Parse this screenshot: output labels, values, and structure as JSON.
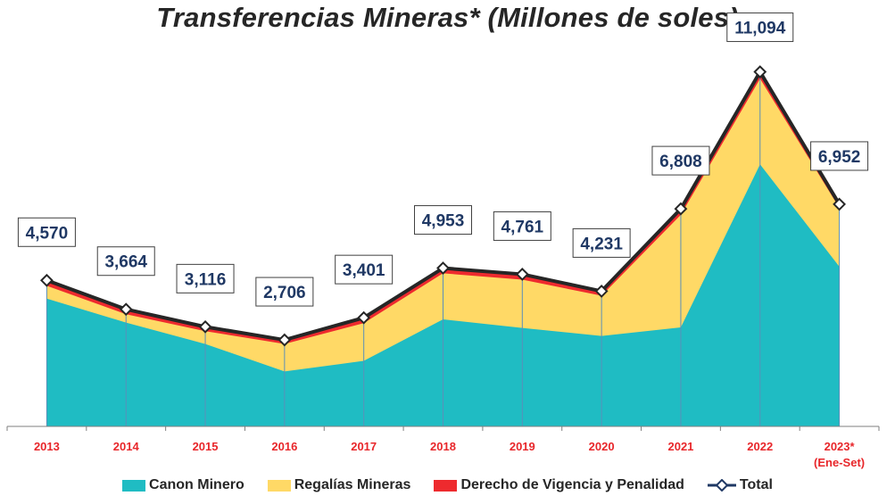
{
  "chart_data": {
    "type": "area",
    "title": "Transferencias Mineras* (Millones de soles)",
    "categories": [
      "2013",
      "2014",
      "2015",
      "2016",
      "2017",
      "2018",
      "2019",
      "2020",
      "2021",
      "2022",
      "2023*"
    ],
    "category_sublabels": [
      "",
      "",
      "",
      "",
      "",
      "",
      "",
      "",
      "",
      "",
      "(Ene-Set)"
    ],
    "stacked": true,
    "series": [
      {
        "name": "Canon Minero",
        "color": "#1fbcc3",
        "values": [
          4000,
          3250,
          2580,
          1720,
          2050,
          3350,
          3080,
          2830,
          3100,
          8200,
          5000
        ]
      },
      {
        "name": "Regalías Mineras",
        "color": "#ffd966",
        "values": [
          400,
          260,
          400,
          860,
          1180,
          1440,
          1510,
          1260,
          3520,
          2680,
          1840
        ]
      },
      {
        "name": "Derecho de Vigencia y Penalidad",
        "color": "#ee2a2e",
        "values": [
          170,
          154,
          136,
          126,
          171,
          163,
          171,
          141,
          188,
          214,
          112
        ]
      }
    ],
    "total": {
      "name": "Total",
      "values": [
        4570,
        3664,
        3116,
        2706,
        3401,
        4953,
        4761,
        4231,
        6808,
        11094,
        6952
      ],
      "labels": [
        "4,570",
        "3,664",
        "3,116",
        "2,706",
        "3,401",
        "4,953",
        "4,761",
        "4,231",
        "6,808",
        "11,094",
        "6,952"
      ]
    },
    "ylim": [
      0,
      11500
    ],
    "grid": false,
    "legend": "bottom"
  }
}
